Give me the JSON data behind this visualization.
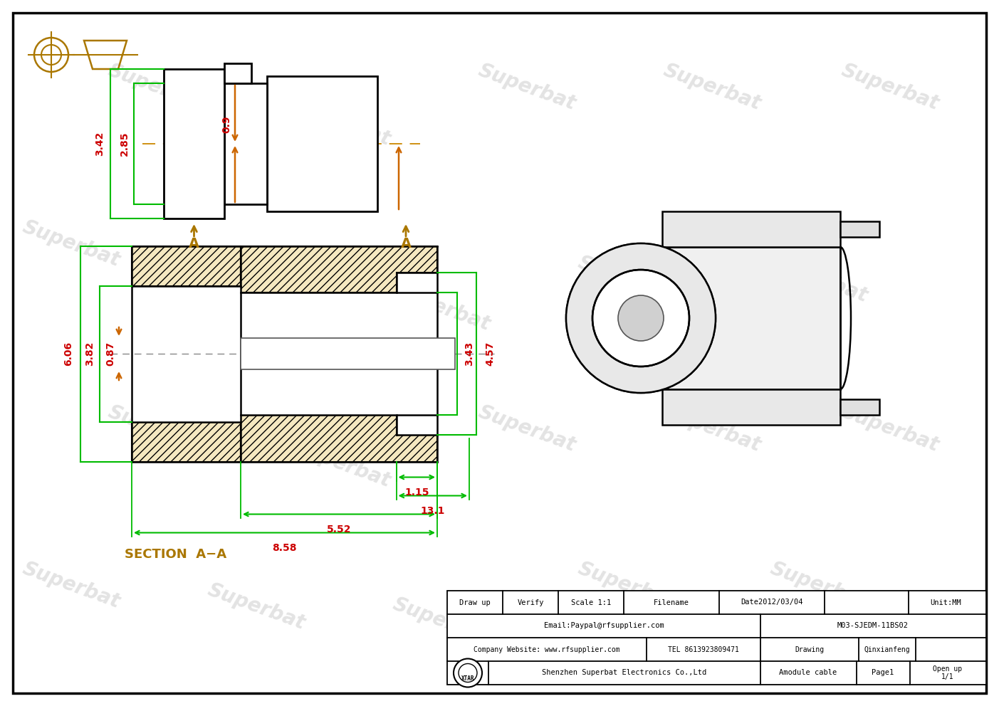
{
  "bg_color": "#ffffff",
  "border_color": "#000000",
  "line_color": "#000000",
  "green_color": "#00bb00",
  "red_color": "#cc0000",
  "orange_color": "#cc6600",
  "brown_color": "#aa7700",
  "hatch_color": "#c8a878",
  "watermark_text": "Superbat",
  "section_label": "SECTION  A−A",
  "title_block": {
    "draw_up": "Draw up",
    "verify": "Verify",
    "scale": "Scale 1:1",
    "filename": "Filename",
    "date": "Date2012/03/04",
    "unit": "Unit:MM",
    "email": "Email:Paypal@rfsupplier.com",
    "model": "M03-SJEDM-11BS02",
    "company_web": "Company Website: www.rfsupplier.com",
    "tel": "TEL 8613923809471",
    "drawing": "Drawing",
    "drafter": "Qinxianfeng",
    "logo": "XTAR",
    "company": "Shenzhen Superbat Electronics Co.,Ltd",
    "cable": "Amodule cable",
    "page": "Page1",
    "open_up": "Open up\n1/1"
  },
  "dims_top": {
    "d342": "3.42",
    "d285": "2.85",
    "d09": "0.9"
  },
  "dims_section": {
    "d606": "6.06",
    "d382": "3.82",
    "d087": "0.87",
    "d343": "3.43",
    "d457": "4.57",
    "d115": "1.15",
    "d131": "13.1",
    "d552": "5.52",
    "d858": "8.58"
  }
}
